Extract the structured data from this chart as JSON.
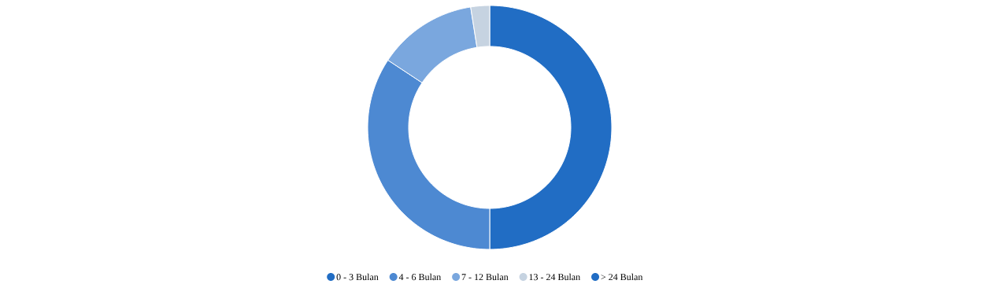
{
  "chart_data": {
    "type": "donut",
    "categories": [
      "0 - 3 Bulan",
      "4 - 6 Bulan",
      "7 - 12 Bulan",
      "13 - 24 Bulan",
      "> 24 Bulan"
    ],
    "values": [
      50,
      34.3,
      13.2,
      2.5,
      0
    ],
    "colors": [
      "#216dc4",
      "#4d89d2",
      "#7aa7de",
      "#c6d3e1",
      "#216dc4"
    ],
    "legend": "bottom"
  }
}
